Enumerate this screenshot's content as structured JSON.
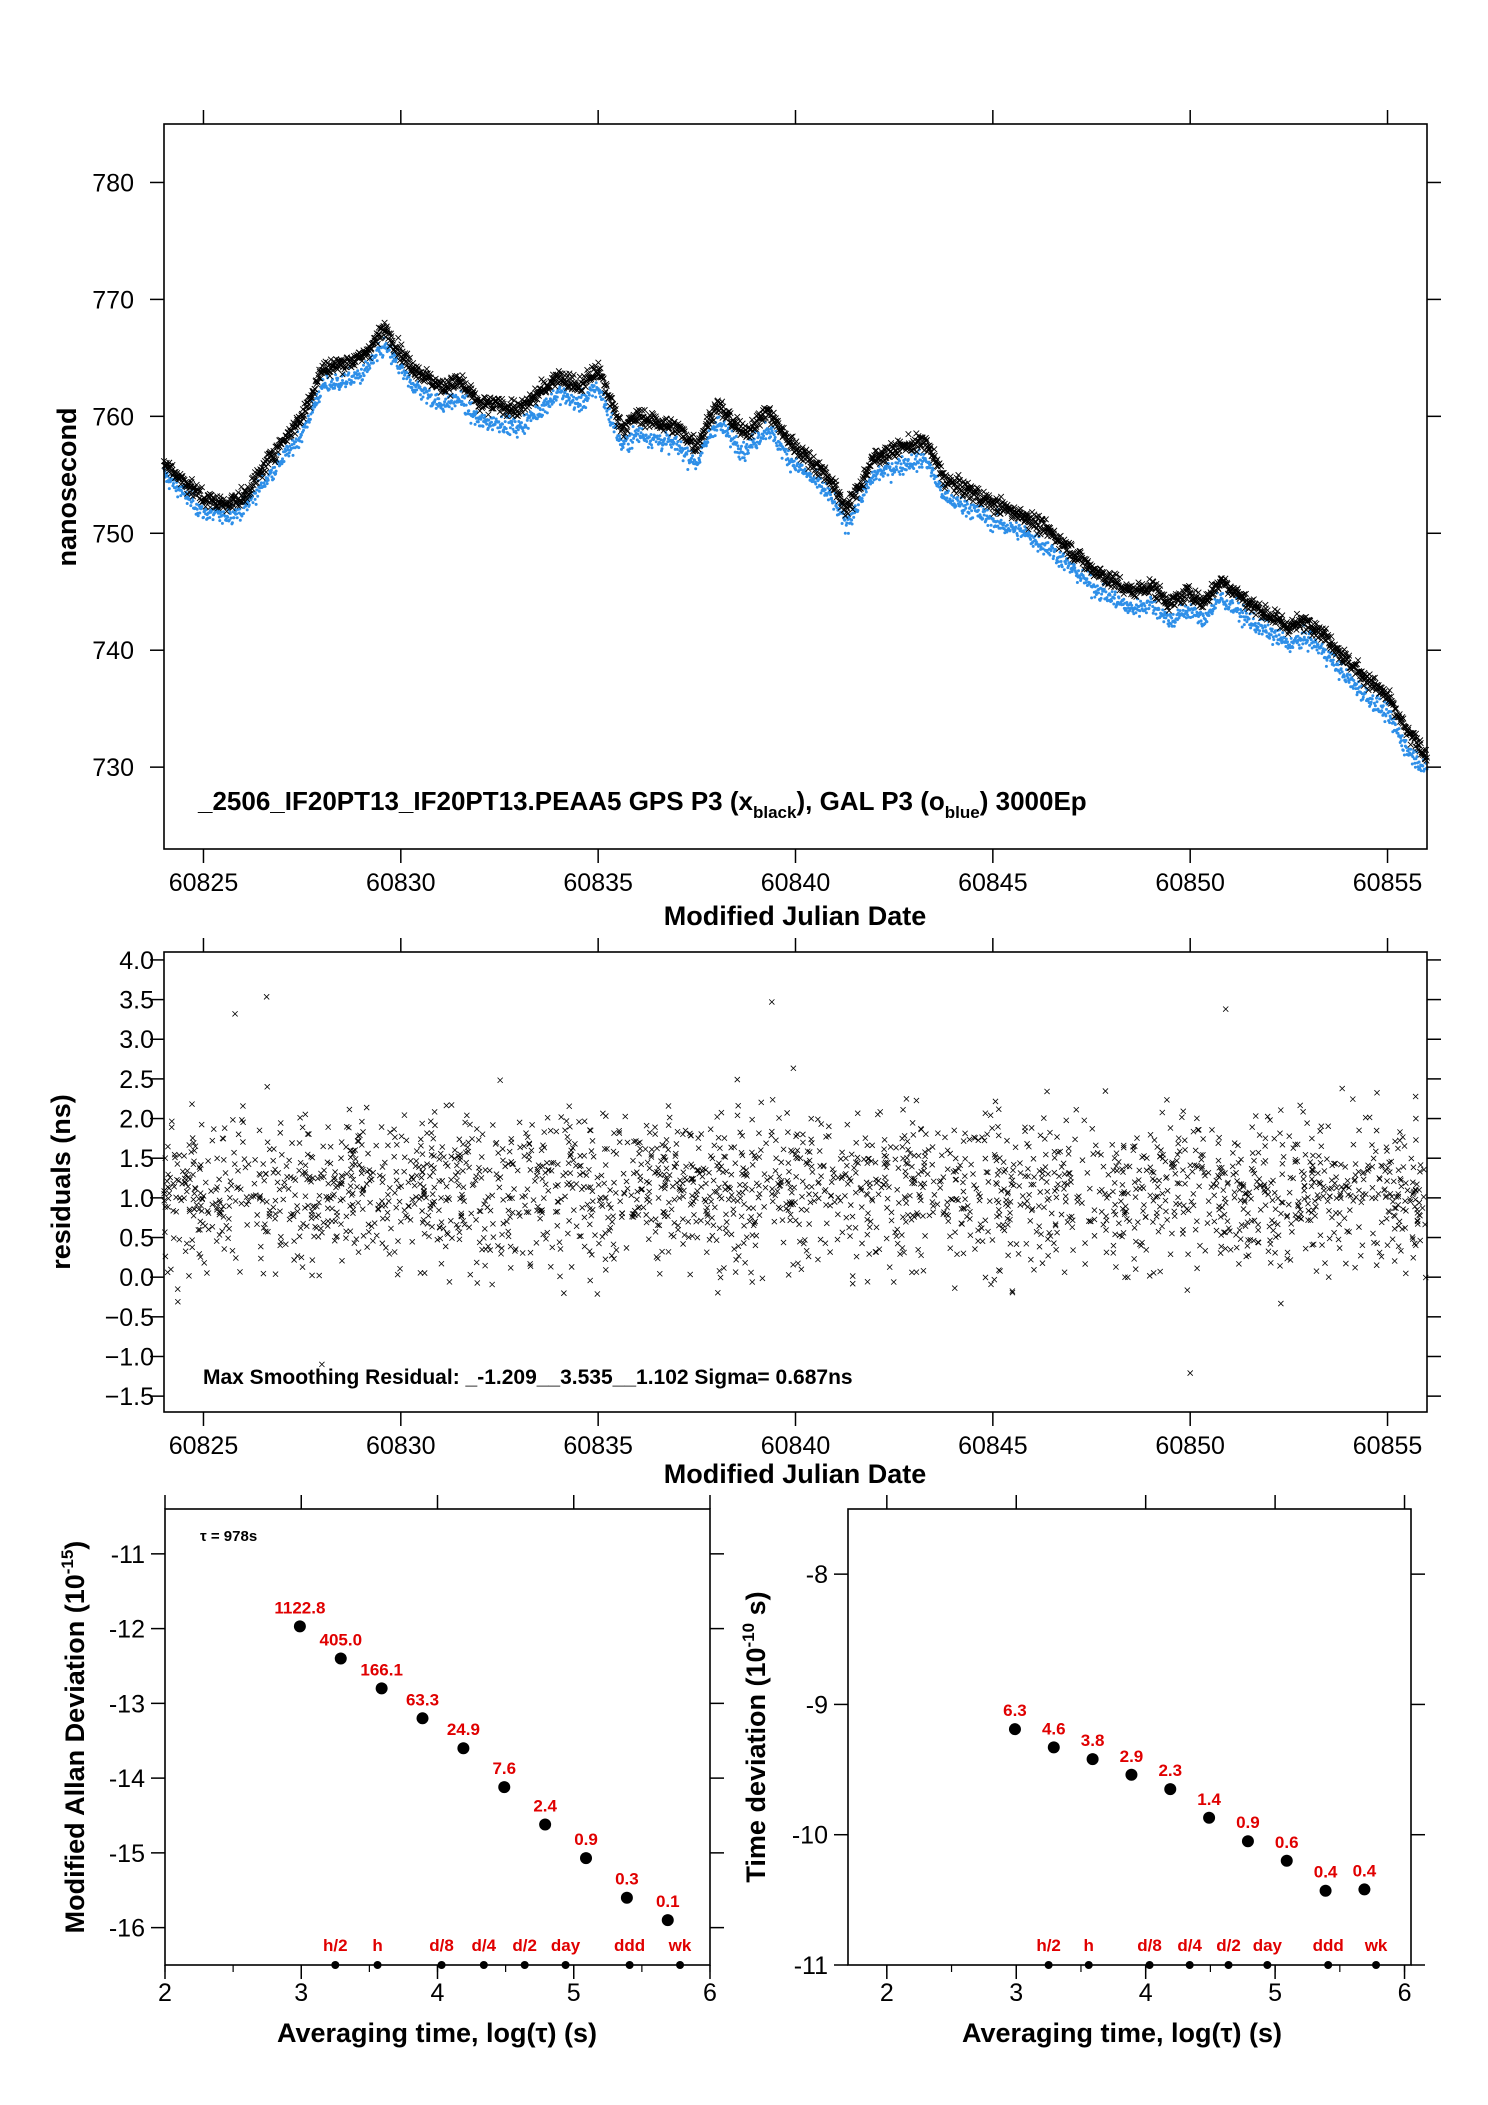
{
  "colors": {
    "gps_series": "#000000",
    "gal_series": "#2e8fe8",
    "stat_labels": "#e00000",
    "frame": "#000000"
  },
  "chart_data": [
    {
      "type": "scatter",
      "panel": "time-series",
      "xlabel": "Modified Julian Date",
      "ylabel": "nanosecond",
      "xlim": [
        60824,
        60856
      ],
      "ylim": [
        723,
        785
      ],
      "xticks": [
        "60825",
        "60830",
        "60835",
        "60840",
        "60845",
        "60850",
        "60855"
      ],
      "yticks": [
        "730",
        "740",
        "750",
        "760",
        "770",
        "780"
      ],
      "annotation": {
        "prefix": "_2506_IF20PT13_IF20PT13.PEAA5     GPS P3 (x",
        "sub1": "black",
        "middle": "),  GAL P3 (o",
        "sub2": "blue",
        "suffix": ")  3000Ep"
      },
      "series": [
        {
          "name": "GPS P3",
          "marker": "x",
          "color": "#000000",
          "x": [
            60824,
            60825,
            60825.5,
            60826,
            60826.8,
            60827.5,
            60828,
            60829,
            60829.6,
            60830.2,
            60831,
            60831.5,
            60832,
            60832.5,
            60833,
            60833.5,
            60834,
            60834.5,
            60835,
            60835.6,
            60836,
            60837,
            60837.5,
            60838,
            60838.7,
            60839.3,
            60839.8,
            60840.3,
            60840.8,
            60841.3,
            60842,
            60842.8,
            60843.3,
            60843.8,
            60844.5,
            60845,
            60845.8,
            60846.5,
            60847,
            60847.5,
            60848,
            60848.5,
            60849,
            60849.5,
            60850,
            60850.3,
            60850.8,
            60851.5,
            60852,
            60852.5,
            60853,
            60853.5,
            60854,
            60854.5,
            60855,
            60855.5,
            60856
          ],
          "y": [
            756,
            753,
            752.5,
            753,
            757,
            760,
            764,
            765,
            767.5,
            764.5,
            762.5,
            763,
            761,
            761,
            760.5,
            762,
            763.5,
            762.5,
            764,
            759,
            760,
            759,
            757.5,
            761,
            758.5,
            760.5,
            758,
            756.5,
            755,
            752,
            756.5,
            757.5,
            757.8,
            754.5,
            753.5,
            752.5,
            751.5,
            750,
            748.5,
            747,
            746,
            745,
            745.5,
            744,
            745,
            744,
            746,
            744,
            743,
            742,
            742.5,
            741,
            739,
            737.5,
            736,
            733,
            731
          ]
        },
        {
          "name": "GAL P3",
          "marker": "o",
          "color": "#2e8fe8",
          "x": [
            60824,
            60825,
            60825.5,
            60826,
            60826.8,
            60827.5,
            60828,
            60829,
            60829.6,
            60830.2,
            60831,
            60831.5,
            60832,
            60832.5,
            60833,
            60833.5,
            60834,
            60834.5,
            60835,
            60835.6,
            60836,
            60837,
            60837.5,
            60838,
            60838.7,
            60839.3,
            60839.8,
            60840.3,
            60840.8,
            60841.3,
            60842,
            60842.8,
            60843.3,
            60843.8,
            60844.5,
            60845,
            60845.8,
            60846.5,
            60847,
            60847.5,
            60848,
            60848.5,
            60849,
            60849.5,
            60850,
            60850.3,
            60850.8,
            60851.5,
            60852,
            60852.5,
            60853,
            60853.5,
            60854,
            60854.5,
            60855,
            60855.5,
            60856
          ],
          "y": [
            755,
            751.8,
            751.5,
            752,
            755.5,
            758.5,
            762.5,
            763.5,
            766,
            763,
            761,
            761.5,
            759.5,
            759.5,
            759,
            760.5,
            762,
            761,
            762.5,
            757.5,
            758.5,
            757.5,
            756,
            759.5,
            757,
            759,
            756.5,
            755,
            753.5,
            750.8,
            755,
            756,
            756.3,
            753,
            752,
            751,
            750,
            748.5,
            747,
            745.5,
            744.5,
            743.5,
            744,
            742.5,
            743.5,
            742.5,
            744.5,
            742.5,
            741.5,
            740.5,
            741,
            739.5,
            737.5,
            736,
            734.5,
            731.5,
            729.8
          ]
        }
      ]
    },
    {
      "type": "scatter",
      "panel": "residuals",
      "xlabel": "Modified Julian Date",
      "ylabel": "residuals (ns)",
      "xlim": [
        60824,
        60856
      ],
      "ylim": [
        -1.7,
        4.1
      ],
      "xticks": [
        "60825",
        "60830",
        "60835",
        "60840",
        "60845",
        "60850",
        "60855"
      ],
      "yticks": [
        "−1.5",
        "−1.0",
        "−0.5",
        "0.0",
        "0.5",
        "1.0",
        "1.5",
        "2.0",
        "2.5",
        "3.0",
        "3.5",
        "4.0"
      ],
      "annotation": "Max Smoothing Residual: _-1.209__3.535__1.102  Sigma= 0.687ns",
      "summary": {
        "min": -1.209,
        "max": 3.535,
        "mean": 1.102,
        "sigma": 0.687
      },
      "series": [
        {
          "name": "residuals",
          "marker": "x",
          "color": "#000000",
          "x": [
            60826.6,
            60839.4,
            60850.0,
            60828.0,
            60825.8,
            60850.9
          ],
          "y": [
            3.535,
            3.47,
            -1.209,
            -1.1,
            3.32,
            3.38
          ]
        }
      ]
    },
    {
      "type": "scatter",
      "panel": "modified-allan-deviation",
      "xlabel": "Averaging time, log(τ) (s)",
      "ylabel": "Modified Allan Deviation (10",
      "ylabel_sup": "-15",
      "ylabel_end": ")",
      "xlim": [
        2,
        6
      ],
      "ylim": [
        -16.5,
        -10.4
      ],
      "xticks": [
        "2",
        "3",
        "4",
        "5",
        "6"
      ],
      "yticks": [
        "-11",
        "-12",
        "-13",
        "-14",
        "-15",
        "-16"
      ],
      "annotation": "τ = 978s",
      "x": [
        2.99,
        3.29,
        3.59,
        3.89,
        4.19,
        4.49,
        4.79,
        5.09,
        5.39,
        5.69
      ],
      "y": [
        -11.97,
        -12.4,
        -12.8,
        -13.2,
        -13.6,
        -14.12,
        -14.62,
        -15.07,
        -15.6,
        -15.9
      ],
      "labels": [
        "1122.8",
        "405.0",
        "166.1",
        "63.3",
        "24.9",
        "7.6",
        "2.4",
        "0.9",
        "0.3",
        "0.1"
      ],
      "markers": [
        {
          "x": 3.25,
          "label": "h/2"
        },
        {
          "x": 3.56,
          "label": "h"
        },
        {
          "x": 4.03,
          "label": "d/8"
        },
        {
          "x": 4.34,
          "label": "d/4"
        },
        {
          "x": 4.64,
          "label": "d/2"
        },
        {
          "x": 4.94,
          "label": "day"
        },
        {
          "x": 5.41,
          "label": "ddd"
        },
        {
          "x": 5.78,
          "label": "wk"
        }
      ]
    },
    {
      "type": "scatter",
      "panel": "time-deviation",
      "xlabel": "Averaging time, log(τ) (s)",
      "ylabel": "Time deviation (10",
      "ylabel_sup": "-10",
      "ylabel_end": " s)",
      "xlim": [
        1.7,
        6.05
      ],
      "ylim": [
        -11,
        -7.5
      ],
      "xticks": [
        "2",
        "3",
        "4",
        "5",
        "6"
      ],
      "yticks": [
        "-8",
        "-9",
        "-10",
        "-11"
      ],
      "x": [
        2.99,
        3.29,
        3.59,
        3.89,
        4.19,
        4.49,
        4.79,
        5.09,
        5.39,
        5.69
      ],
      "y": [
        -9.19,
        -9.33,
        -9.42,
        -9.54,
        -9.65,
        -9.87,
        -10.05,
        -10.2,
        -10.43,
        -10.42
      ],
      "labels": [
        "6.3",
        "4.6",
        "3.8",
        "2.9",
        "2.3",
        "1.4",
        "0.9",
        "0.6",
        "0.4",
        "0.4"
      ],
      "markers": [
        {
          "x": 3.25,
          "label": "h/2"
        },
        {
          "x": 3.56,
          "label": "h"
        },
        {
          "x": 4.03,
          "label": "d/8"
        },
        {
          "x": 4.34,
          "label": "d/4"
        },
        {
          "x": 4.64,
          "label": "d/2"
        },
        {
          "x": 4.94,
          "label": "day"
        },
        {
          "x": 5.41,
          "label": "ddd"
        },
        {
          "x": 5.78,
          "label": "wk"
        }
      ]
    }
  ]
}
